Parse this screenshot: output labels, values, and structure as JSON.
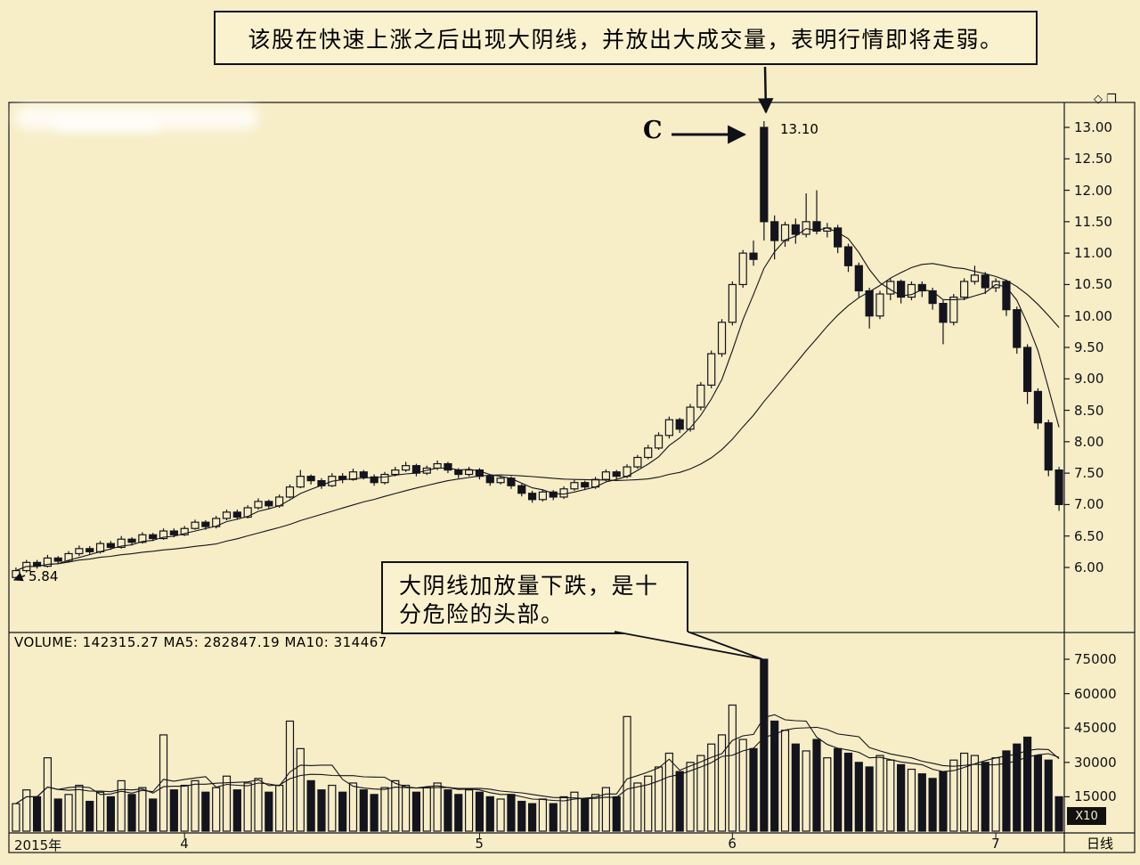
{
  "colors": {
    "background": "#f7edc6",
    "ink": "#14141e",
    "box_bg": "#faf2cf",
    "badge_bg": "#111111",
    "badge_text": "#f7edc6"
  },
  "header_callout": {
    "text": "该股在快速上涨之后出现大阴线，并放出大成交量，表明行情即将走弱。"
  },
  "body_callout": {
    "text": "大阴线加放量下跌，是十分危险的头部。"
  },
  "annotations": {
    "c_marker": "C",
    "peak_price": "13.10",
    "start_price": "5.84"
  },
  "volume_header": "VOLUME: 142315.27 MA5: 282847.19 MA10: 314467",
  "badges": {
    "multiplier": "X10",
    "period": "日线"
  },
  "window_icons": {
    "glyphs": "◇❐"
  },
  "chart_data": {
    "type": "candlestick_with_volume",
    "title": "",
    "price_axis": [
      "13.00",
      "12.50",
      "12.00",
      "11.50",
      "11.00",
      "10.50",
      "10.00",
      "9.50",
      "9.00",
      "8.50",
      "8.00",
      "7.50",
      "7.00",
      "6.50",
      "6.00"
    ],
    "volume_axis": [
      "75000",
      "60000",
      "45000",
      "30000",
      "15000"
    ],
    "x_axis": [
      {
        "label": "2015年",
        "index": 0
      },
      {
        "label": "4",
        "index": 16
      },
      {
        "label": "5",
        "index": 44
      },
      {
        "label": "6",
        "index": 68
      },
      {
        "label": "7",
        "index": 93
      }
    ],
    "price_ylim": [
      5.6,
      13.4
    ],
    "volume_ylim": [
      0,
      75000
    ],
    "price_ma_windows": [
      5,
      20
    ],
    "volume_ma_windows": [
      5,
      10
    ],
    "candles": [
      [
        5.84,
        6.0,
        5.8,
        5.95
      ],
      [
        5.95,
        6.12,
        5.92,
        6.08
      ],
      [
        6.08,
        6.12,
        5.98,
        6.02
      ],
      [
        6.02,
        6.2,
        6.0,
        6.15
      ],
      [
        6.15,
        6.18,
        6.05,
        6.1
      ],
      [
        6.1,
        6.26,
        6.08,
        6.22
      ],
      [
        6.22,
        6.35,
        6.18,
        6.3
      ],
      [
        6.3,
        6.34,
        6.2,
        6.25
      ],
      [
        6.25,
        6.42,
        6.22,
        6.38
      ],
      [
        6.38,
        6.42,
        6.28,
        6.32
      ],
      [
        6.32,
        6.5,
        6.3,
        6.45
      ],
      [
        6.45,
        6.48,
        6.35,
        6.4
      ],
      [
        6.4,
        6.56,
        6.38,
        6.52
      ],
      [
        6.52,
        6.55,
        6.42,
        6.46
      ],
      [
        6.46,
        6.62,
        6.44,
        6.58
      ],
      [
        6.58,
        6.62,
        6.48,
        6.52
      ],
      [
        6.52,
        6.66,
        6.5,
        6.62
      ],
      [
        6.62,
        6.76,
        6.6,
        6.72
      ],
      [
        6.72,
        6.75,
        6.6,
        6.65
      ],
      [
        6.65,
        6.82,
        6.62,
        6.78
      ],
      [
        6.78,
        6.92,
        6.75,
        6.88
      ],
      [
        6.88,
        6.92,
        6.76,
        6.8
      ],
      [
        6.8,
        6.99,
        6.78,
        6.95
      ],
      [
        6.95,
        7.1,
        6.92,
        7.05
      ],
      [
        7.05,
        7.08,
        6.93,
        6.98
      ],
      [
        6.98,
        7.16,
        6.95,
        7.12
      ],
      [
        7.12,
        7.32,
        7.1,
        7.28
      ],
      [
        7.28,
        7.55,
        7.26,
        7.45
      ],
      [
        7.45,
        7.48,
        7.32,
        7.38
      ],
      [
        7.38,
        7.42,
        7.25,
        7.3
      ],
      [
        7.3,
        7.5,
        7.28,
        7.45
      ],
      [
        7.45,
        7.5,
        7.34,
        7.4
      ],
      [
        7.4,
        7.57,
        7.38,
        7.52
      ],
      [
        7.52,
        7.55,
        7.4,
        7.44
      ],
      [
        7.44,
        7.48,
        7.3,
        7.35
      ],
      [
        7.35,
        7.52,
        7.32,
        7.48
      ],
      [
        7.48,
        7.6,
        7.45,
        7.55
      ],
      [
        7.55,
        7.68,
        7.52,
        7.62
      ],
      [
        7.62,
        7.65,
        7.45,
        7.5
      ],
      [
        7.5,
        7.62,
        7.47,
        7.58
      ],
      [
        7.58,
        7.7,
        7.55,
        7.65
      ],
      [
        7.65,
        7.68,
        7.5,
        7.55
      ],
      [
        7.55,
        7.58,
        7.42,
        7.48
      ],
      [
        7.48,
        7.6,
        7.45,
        7.55
      ],
      [
        7.55,
        7.58,
        7.4,
        7.45
      ],
      [
        7.45,
        7.48,
        7.3,
        7.35
      ],
      [
        7.35,
        7.46,
        7.32,
        7.42
      ],
      [
        7.42,
        7.45,
        7.25,
        7.3
      ],
      [
        7.3,
        7.33,
        7.13,
        7.18
      ],
      [
        7.18,
        7.22,
        7.03,
        7.08
      ],
      [
        7.08,
        7.24,
        7.05,
        7.2
      ],
      [
        7.2,
        7.23,
        7.07,
        7.12
      ],
      [
        7.12,
        7.29,
        7.09,
        7.25
      ],
      [
        7.25,
        7.39,
        7.22,
        7.35
      ],
      [
        7.35,
        7.38,
        7.23,
        7.28
      ],
      [
        7.28,
        7.44,
        7.25,
        7.4
      ],
      [
        7.4,
        7.56,
        7.37,
        7.52
      ],
      [
        7.52,
        7.55,
        7.4,
        7.45
      ],
      [
        7.45,
        7.64,
        7.42,
        7.6
      ],
      [
        7.6,
        7.79,
        7.57,
        7.75
      ],
      [
        7.75,
        7.95,
        7.72,
        7.9
      ],
      [
        7.9,
        8.15,
        7.87,
        8.1
      ],
      [
        8.1,
        8.4,
        8.05,
        8.35
      ],
      [
        8.35,
        8.38,
        8.14,
        8.2
      ],
      [
        8.2,
        8.6,
        8.16,
        8.55
      ],
      [
        8.55,
        8.95,
        8.5,
        8.9
      ],
      [
        8.9,
        9.45,
        8.85,
        9.4
      ],
      [
        9.4,
        9.95,
        9.35,
        9.9
      ],
      [
        9.9,
        10.55,
        9.85,
        10.5
      ],
      [
        10.5,
        11.05,
        10.45,
        11.0
      ],
      [
        11.0,
        11.2,
        10.8,
        10.9
      ],
      [
        13.0,
        13.1,
        11.2,
        11.5
      ],
      [
        11.5,
        11.6,
        10.9,
        11.2
      ],
      [
        11.2,
        11.5,
        11.1,
        11.45
      ],
      [
        11.45,
        11.55,
        11.15,
        11.3
      ],
      [
        11.3,
        11.95,
        11.25,
        11.5
      ],
      [
        11.5,
        12.0,
        11.3,
        11.35
      ],
      [
        11.35,
        11.48,
        11.25,
        11.4
      ],
      [
        11.4,
        11.45,
        11.0,
        11.1
      ],
      [
        11.1,
        11.15,
        10.7,
        10.8
      ],
      [
        10.8,
        10.85,
        10.3,
        10.4
      ],
      [
        10.4,
        10.45,
        9.8,
        10.0
      ],
      [
        10.0,
        10.4,
        9.95,
        10.35
      ],
      [
        10.35,
        10.6,
        10.25,
        10.55
      ],
      [
        10.55,
        10.58,
        10.2,
        10.3
      ],
      [
        10.3,
        10.55,
        10.25,
        10.5
      ],
      [
        10.5,
        10.55,
        10.3,
        10.4
      ],
      [
        10.4,
        10.45,
        10.1,
        10.2
      ],
      [
        10.2,
        10.25,
        9.55,
        9.9
      ],
      [
        9.9,
        10.35,
        9.85,
        10.3
      ],
      [
        10.3,
        10.6,
        10.25,
        10.55
      ],
      [
        10.55,
        10.8,
        10.5,
        10.65
      ],
      [
        10.65,
        10.7,
        10.35,
        10.45
      ],
      [
        10.45,
        10.6,
        10.38,
        10.55
      ],
      [
        10.55,
        10.58,
        10.0,
        10.1
      ],
      [
        10.1,
        10.15,
        9.4,
        9.5
      ],
      [
        9.5,
        9.55,
        8.6,
        8.8
      ],
      [
        8.8,
        8.85,
        8.2,
        8.3
      ],
      [
        8.3,
        8.35,
        7.45,
        7.55
      ],
      [
        7.55,
        7.6,
        6.9,
        7.0
      ]
    ],
    "volumes": [
      12000,
      18000,
      15000,
      32000,
      14000,
      16000,
      20000,
      13000,
      17000,
      15000,
      22000,
      16000,
      19000,
      14000,
      42000,
      18000,
      20000,
      22000,
      17000,
      19000,
      24000,
      18000,
      21000,
      23000,
      17000,
      20000,
      48000,
      36000,
      22000,
      18000,
      20000,
      17000,
      21000,
      18000,
      16000,
      19000,
      22000,
      20000,
      17000,
      19000,
      21000,
      18000,
      16000,
      18000,
      17000,
      15000,
      14000,
      16000,
      13000,
      12000,
      14000,
      12000,
      15000,
      17000,
      14000,
      16000,
      19000,
      15000,
      50000,
      21000,
      24000,
      28000,
      34000,
      26000,
      30000,
      33000,
      38000,
      42000,
      55000,
      40000,
      36000,
      75000,
      48000,
      44000,
      38000,
      35000,
      40000,
      32000,
      36000,
      34000,
      30000,
      28000,
      33000,
      31000,
      29000,
      27000,
      25000,
      23000,
      26000,
      31000,
      34000,
      33000,
      30000,
      32000,
      35000,
      38000,
      41000,
      33000,
      31000,
      15000
    ]
  }
}
